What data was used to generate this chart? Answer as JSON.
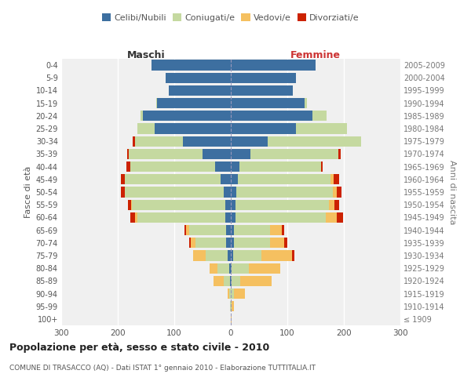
{
  "age_groups": [
    "100+",
    "95-99",
    "90-94",
    "85-89",
    "80-84",
    "75-79",
    "70-74",
    "65-69",
    "60-64",
    "55-59",
    "50-54",
    "45-49",
    "40-44",
    "35-39",
    "30-34",
    "25-29",
    "20-24",
    "15-19",
    "10-14",
    "5-9",
    "0-4"
  ],
  "birth_years": [
    "≤ 1909",
    "1910-1914",
    "1915-1919",
    "1920-1924",
    "1925-1929",
    "1930-1934",
    "1935-1939",
    "1940-1944",
    "1945-1949",
    "1950-1954",
    "1955-1959",
    "1960-1964",
    "1965-1969",
    "1970-1974",
    "1975-1979",
    "1980-1984",
    "1985-1989",
    "1990-1994",
    "1995-1999",
    "2000-2004",
    "2005-2009"
  ],
  "males": {
    "celibe": [
      0,
      0,
      0,
      2,
      3,
      5,
      8,
      8,
      10,
      10,
      13,
      18,
      28,
      50,
      85,
      135,
      155,
      130,
      110,
      115,
      140
    ],
    "coniugato": [
      0,
      1,
      3,
      10,
      20,
      40,
      55,
      65,
      155,
      165,
      175,
      170,
      150,
      130,
      85,
      30,
      5,
      2,
      0,
      0,
      0
    ],
    "vedovo": [
      0,
      0,
      3,
      18,
      15,
      22,
      8,
      6,
      5,
      2,
      0,
      0,
      0,
      0,
      0,
      0,
      0,
      0,
      0,
      0,
      0
    ],
    "divorziato": [
      0,
      0,
      0,
      0,
      0,
      0,
      3,
      3,
      8,
      5,
      6,
      6,
      7,
      4,
      3,
      0,
      0,
      0,
      0,
      0,
      0
    ]
  },
  "females": {
    "nubile": [
      0,
      0,
      0,
      2,
      2,
      4,
      5,
      5,
      8,
      8,
      10,
      12,
      15,
      35,
      65,
      115,
      145,
      130,
      110,
      115,
      150
    ],
    "coniugata": [
      0,
      2,
      5,
      15,
      30,
      50,
      65,
      65,
      160,
      165,
      170,
      165,
      145,
      155,
      165,
      90,
      25,
      5,
      0,
      0,
      0
    ],
    "vedova": [
      1,
      3,
      20,
      55,
      55,
      55,
      25,
      20,
      20,
      10,
      8,
      5,
      0,
      0,
      0,
      0,
      0,
      0,
      0,
      0,
      0
    ],
    "divorziata": [
      0,
      0,
      0,
      0,
      0,
      3,
      5,
      5,
      10,
      8,
      8,
      10,
      3,
      4,
      0,
      0,
      0,
      0,
      0,
      0,
      0
    ]
  },
  "color_celibe": "#3d6fa0",
  "color_coniugato": "#c5d9a0",
  "color_vedovo": "#f5c060",
  "color_divorziato": "#cc2200",
  "xlim": 300,
  "title": "Popolazione per età, sesso e stato civile - 2010",
  "subtitle": "COMUNE DI TRASACCO (AQ) - Dati ISTAT 1° gennaio 2010 - Elaborazione TUTTITALIA.IT",
  "ylabel_left": "Fasce di età",
  "ylabel_right": "Anni di nascita",
  "xlabel_left": "Maschi",
  "xlabel_right": "Femmine",
  "bg_color": "#f0f0f0"
}
